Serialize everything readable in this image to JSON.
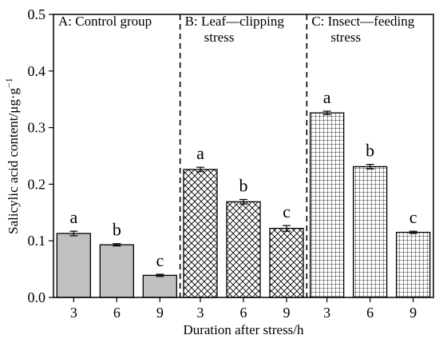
{
  "chart_data": {
    "type": "bar",
    "xlabel": "Duration after stress/h",
    "ylabel": "Salicylic acid content/μg·g",
    "ylabel_sup": "−1",
    "ylim": [
      0,
      0.5
    ],
    "yticks": [
      "0.0",
      "0.1",
      "0.2",
      "0.3",
      "0.4",
      "0.5"
    ],
    "grid": false,
    "bar_color": "#c0c0c0",
    "groups": [
      {
        "name": "A: Control group",
        "name_lines": [
          "A: Control group"
        ],
        "pattern": "solid",
        "categories": [
          "3",
          "6",
          "9"
        ],
        "values": [
          0.113,
          0.093,
          0.039
        ],
        "errors": [
          0.004,
          0.002,
          0.002
        ],
        "letters": [
          "a",
          "b",
          "c"
        ]
      },
      {
        "name": "B: Leaf—clipping stress",
        "name_lines": [
          "B: Leaf—clipping",
          "stress"
        ],
        "pattern": "crosshatch",
        "categories": [
          "3",
          "6",
          "9"
        ],
        "values": [
          0.226,
          0.169,
          0.122
        ],
        "errors": [
          0.004,
          0.004,
          0.005
        ],
        "letters": [
          "a",
          "b",
          "c"
        ]
      },
      {
        "name": "C: Insect—feeding stress",
        "name_lines": [
          "C: Insect—feeding",
          "stress"
        ],
        "pattern": "grid",
        "categories": [
          "3",
          "6",
          "9"
        ],
        "values": [
          0.326,
          0.231,
          0.115
        ],
        "errors": [
          0.003,
          0.004,
          0.002
        ],
        "letters": [
          "a",
          "b",
          "c"
        ]
      }
    ]
  }
}
